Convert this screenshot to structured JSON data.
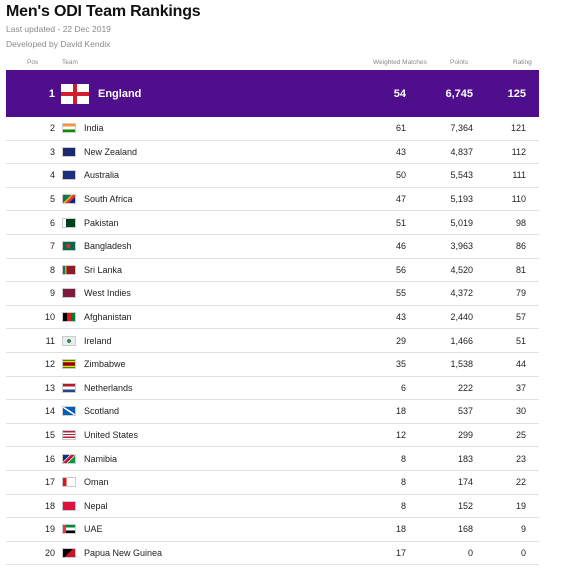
{
  "header": {
    "title": "Men's ODI Team Rankings",
    "last_updated": "Last updated - 22 Dec 2019",
    "developer": "Developed by David Kendix"
  },
  "columns": {
    "pos": "Pos",
    "team": "Team",
    "matches": "Weighted Matches",
    "points": "Points",
    "rating": "Rating"
  },
  "top_team": {
    "pos": "1",
    "team": "England",
    "matches": "54",
    "points": "6,745",
    "rating": "125",
    "flag": "england-flag-icon"
  },
  "rows": [
    {
      "pos": "2",
      "team": "India",
      "matches": "61",
      "points": "7,364",
      "rating": "121",
      "flag": "india-flag-icon"
    },
    {
      "pos": "3",
      "team": "New Zealand",
      "matches": "43",
      "points": "4,837",
      "rating": "112",
      "flag": "new-zealand-flag-icon"
    },
    {
      "pos": "4",
      "team": "Australia",
      "matches": "50",
      "points": "5,543",
      "rating": "111",
      "flag": "australia-flag-icon"
    },
    {
      "pos": "5",
      "team": "South Africa",
      "matches": "47",
      "points": "5,193",
      "rating": "110",
      "flag": "south-africa-flag-icon"
    },
    {
      "pos": "6",
      "team": "Pakistan",
      "matches": "51",
      "points": "5,019",
      "rating": "98",
      "flag": "pakistan-flag-icon"
    },
    {
      "pos": "7",
      "team": "Bangladesh",
      "matches": "46",
      "points": "3,963",
      "rating": "86",
      "flag": "bangladesh-flag-icon"
    },
    {
      "pos": "8",
      "team": "Sri Lanka",
      "matches": "56",
      "points": "4,520",
      "rating": "81",
      "flag": "sri-lanka-flag-icon"
    },
    {
      "pos": "9",
      "team": "West Indies",
      "matches": "55",
      "points": "4,372",
      "rating": "79",
      "flag": "west-indies-flag-icon"
    },
    {
      "pos": "10",
      "team": "Afghanistan",
      "matches": "43",
      "points": "2,440",
      "rating": "57",
      "flag": "afghanistan-flag-icon"
    },
    {
      "pos": "11",
      "team": "Ireland",
      "matches": "29",
      "points": "1,466",
      "rating": "51",
      "flag": "ireland-flag-icon"
    },
    {
      "pos": "12",
      "team": "Zimbabwe",
      "matches": "35",
      "points": "1,538",
      "rating": "44",
      "flag": "zimbabwe-flag-icon"
    },
    {
      "pos": "13",
      "team": "Netherlands",
      "matches": "6",
      "points": "222",
      "rating": "37",
      "flag": "netherlands-flag-icon"
    },
    {
      "pos": "14",
      "team": "Scotland",
      "matches": "18",
      "points": "537",
      "rating": "30",
      "flag": "scotland-flag-icon"
    },
    {
      "pos": "15",
      "team": "United States",
      "matches": "12",
      "points": "299",
      "rating": "25",
      "flag": "united-states-flag-icon"
    },
    {
      "pos": "16",
      "team": "Namibia",
      "matches": "8",
      "points": "183",
      "rating": "23",
      "flag": "namibia-flag-icon"
    },
    {
      "pos": "17",
      "team": "Oman",
      "matches": "8",
      "points": "174",
      "rating": "22",
      "flag": "oman-flag-icon"
    },
    {
      "pos": "18",
      "team": "Nepal",
      "matches": "8",
      "points": "152",
      "rating": "19",
      "flag": "nepal-flag-icon"
    },
    {
      "pos": "19",
      "team": "UAE",
      "matches": "18",
      "points": "168",
      "rating": "9",
      "flag": "uae-flag-icon"
    },
    {
      "pos": "20",
      "team": "Papua New Guinea",
      "matches": "17",
      "points": "0",
      "rating": "0",
      "flag": "papua-new-guinea-flag-icon"
    }
  ],
  "flag_styles": {
    "india-flag-icon": "linear-gradient(#f4953b 33%, #ffffff 33%, #ffffff 66%, #138808 66%)",
    "new-zealand-flag-icon": "linear-gradient(#1b2a6b, #1b2a6b)",
    "australia-flag-icon": "linear-gradient(#1c2f7a, #1c2f7a)",
    "south-africa-flag-icon": "linear-gradient(135deg, #007a4d 40%, #ffb612 40%, #ffb612 50%, #de3831 50%, #de3831 70%, #002395 70%)",
    "pakistan-flag-icon": "linear-gradient(90deg, #ffffff 25%, #01411c 25%)",
    "bangladesh-flag-icon": "radial-gradient(circle at 45% 50%, #e2292c 28%, #006a4e 30%)",
    "sri-lanka-flag-icon": "linear-gradient(90deg, #0b7a52 15%, #f29a1c 15%, #f29a1c 30%, #8e1b26 30%)",
    "west-indies-flag-icon": "linear-gradient(#7b1c3a, #7b1c3a)",
    "afghanistan-flag-icon": "linear-gradient(90deg, #000000 33%, #d32011 33%, #d32011 66%, #007a36 66%)",
    "ireland-flag-icon": "radial-gradient(circle at 50% 50%, #2e8b3c 25%, #e8eef5 30%)",
    "zimbabwe-flag-icon": "linear-gradient(#319208 14%, #ffd200 14%, #ffd200 28%, #de2010 28%, #de2010 42%, #000000 42%, #000000 58%, #de2010 58%, #de2010 72%, #ffd200 72%, #ffd200 86%, #319208 86%)",
    "netherlands-flag-icon": "linear-gradient(#ae1c28 33%, #ffffff 33%, #ffffff 66%, #21468b 66%)",
    "scotland-flag-icon": "linear-gradient(33deg, #005eb8 44%, #ffffff 44%, #ffffff 56%, #005eb8 56%)",
    "united-states-flag-icon": "repeating-linear-gradient(#b22234 0px, #b22234 1.4px, #ffffff 1.4px, #ffffff 2.8px)",
    "namibia-flag-icon": "linear-gradient(135deg, #003580 35%, #ffffff 35%, #ffffff 40%, #d21034 40%, #d21034 60%, #ffffff 60%, #ffffff 65%, #009a44 65%)",
    "oman-flag-icon": "linear-gradient(90deg, #db161b 28%, #ffffff 28%)",
    "nepal-flag-icon": "linear-gradient(#dc143c, #dc143c)",
    "uae-flag-icon": "linear-gradient(90deg, #ef3340 25%, transparent 25%), linear-gradient(#00843d 33%, #ffffff 33%, #ffffff 66%, #000000 66%)",
    "papua-new-guinea-flag-icon": "linear-gradient(135deg, #000000 50%, #ce1126 50%)"
  }
}
